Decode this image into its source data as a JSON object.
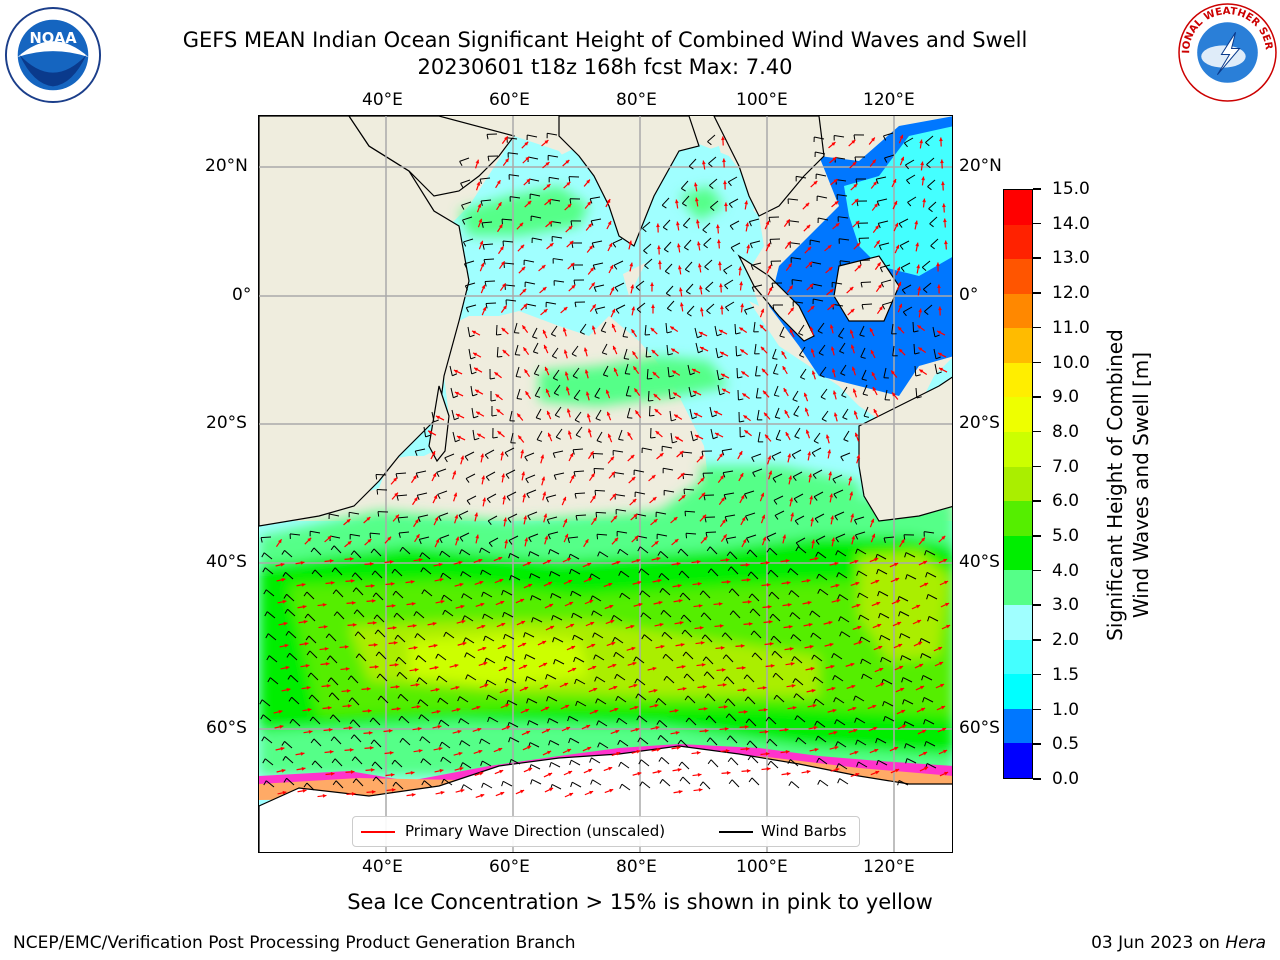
{
  "header": {
    "title_line1": "GEFS MEAN Indian Ocean Significant Height of Combined Wind Waves and Swell",
    "title_line2": "20230601 t18z 168h fcst   Max: 7.40"
  },
  "logos": {
    "left": "noaa-logo",
    "left_text": "NOAA",
    "right": "national-weather-service-logo",
    "right_text": "NATIONAL WEATHER SERVICE"
  },
  "map": {
    "region": "Indian Ocean",
    "lon_ticks": [
      "40°E",
      "60°E",
      "80°E",
      "100°E",
      "120°E"
    ],
    "lat_ticks_left": [
      "20°N",
      "0°",
      "20°S",
      "40°S",
      "60°S"
    ],
    "lat_ticks_right": [
      "20°N",
      "0°",
      "20°S",
      "40°S",
      "60°S"
    ],
    "land_color": "#efedde",
    "ice_colors": [
      "#ff33cc",
      "#ffaa66",
      "#ffdd44"
    ],
    "grid": true,
    "wave_arrow_color": "#ff0000",
    "wind_barb_color": "#000000"
  },
  "colorbar": {
    "label": "Significant Height of Combined Wind Waves and Swell [m]",
    "ticks": [
      "0.0",
      "0.5",
      "1.0",
      "1.5",
      "2.0",
      "3.0",
      "4.0",
      "5.0",
      "6.0",
      "7.0",
      "8.0",
      "9.0",
      "10.0",
      "11.0",
      "12.0",
      "13.0",
      "14.0",
      "15.0"
    ],
    "colors": [
      "#0000ff",
      "#0077ff",
      "#00ffff",
      "#44ffff",
      "#a0ffff",
      "#55ff88",
      "#00ee00",
      "#55ee00",
      "#aaee00",
      "#ccff00",
      "#eeff00",
      "#ffee00",
      "#ffbb00",
      "#ff8800",
      "#ff5500",
      "#ff2200",
      "#ff0000"
    ]
  },
  "legend": {
    "wave_label": "Primary Wave Direction (unscaled)",
    "wind_label": "Wind Barbs"
  },
  "footer": {
    "note": "Sea Ice Concentration > 15% is shown in pink to yellow",
    "credit": "NCEP/EMC/Verification Post Processing Product Generation Branch",
    "date": "03 Jun 2023 on",
    "machine": "Hera"
  }
}
